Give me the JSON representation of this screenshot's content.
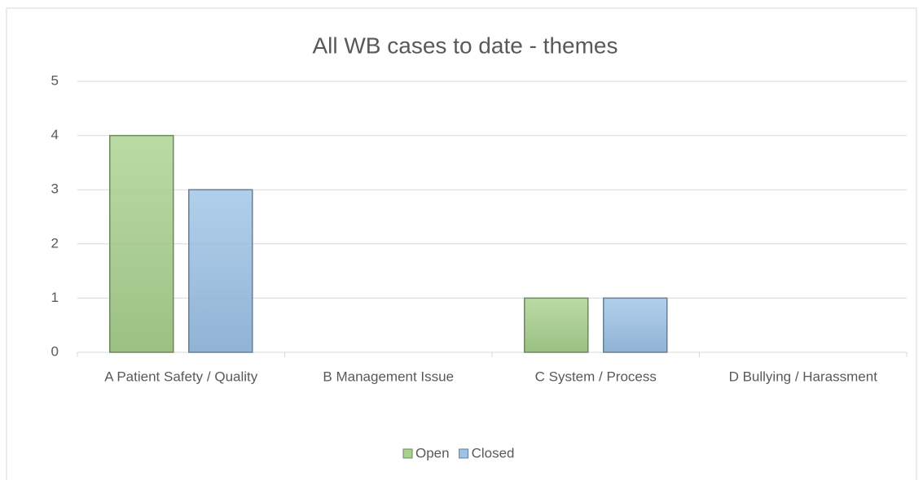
{
  "chart_data": {
    "type": "bar",
    "title": "All WB cases to date - themes",
    "categories": [
      "A Patient Safety / Quality",
      "B Management Issue",
      "C System / Process",
      "D Bullying / Harassment"
    ],
    "series": [
      {
        "name": "Open",
        "color": "#a9d18e",
        "values": [
          4,
          0,
          1,
          0
        ]
      },
      {
        "name": "Closed",
        "color": "#9dc3e6",
        "values": [
          3,
          0,
          1,
          0
        ]
      }
    ],
    "ylim": [
      0,
      5
    ],
    "yticks": [
      0,
      1,
      2,
      3,
      4,
      5
    ],
    "grid": true,
    "legend": "bottom"
  }
}
